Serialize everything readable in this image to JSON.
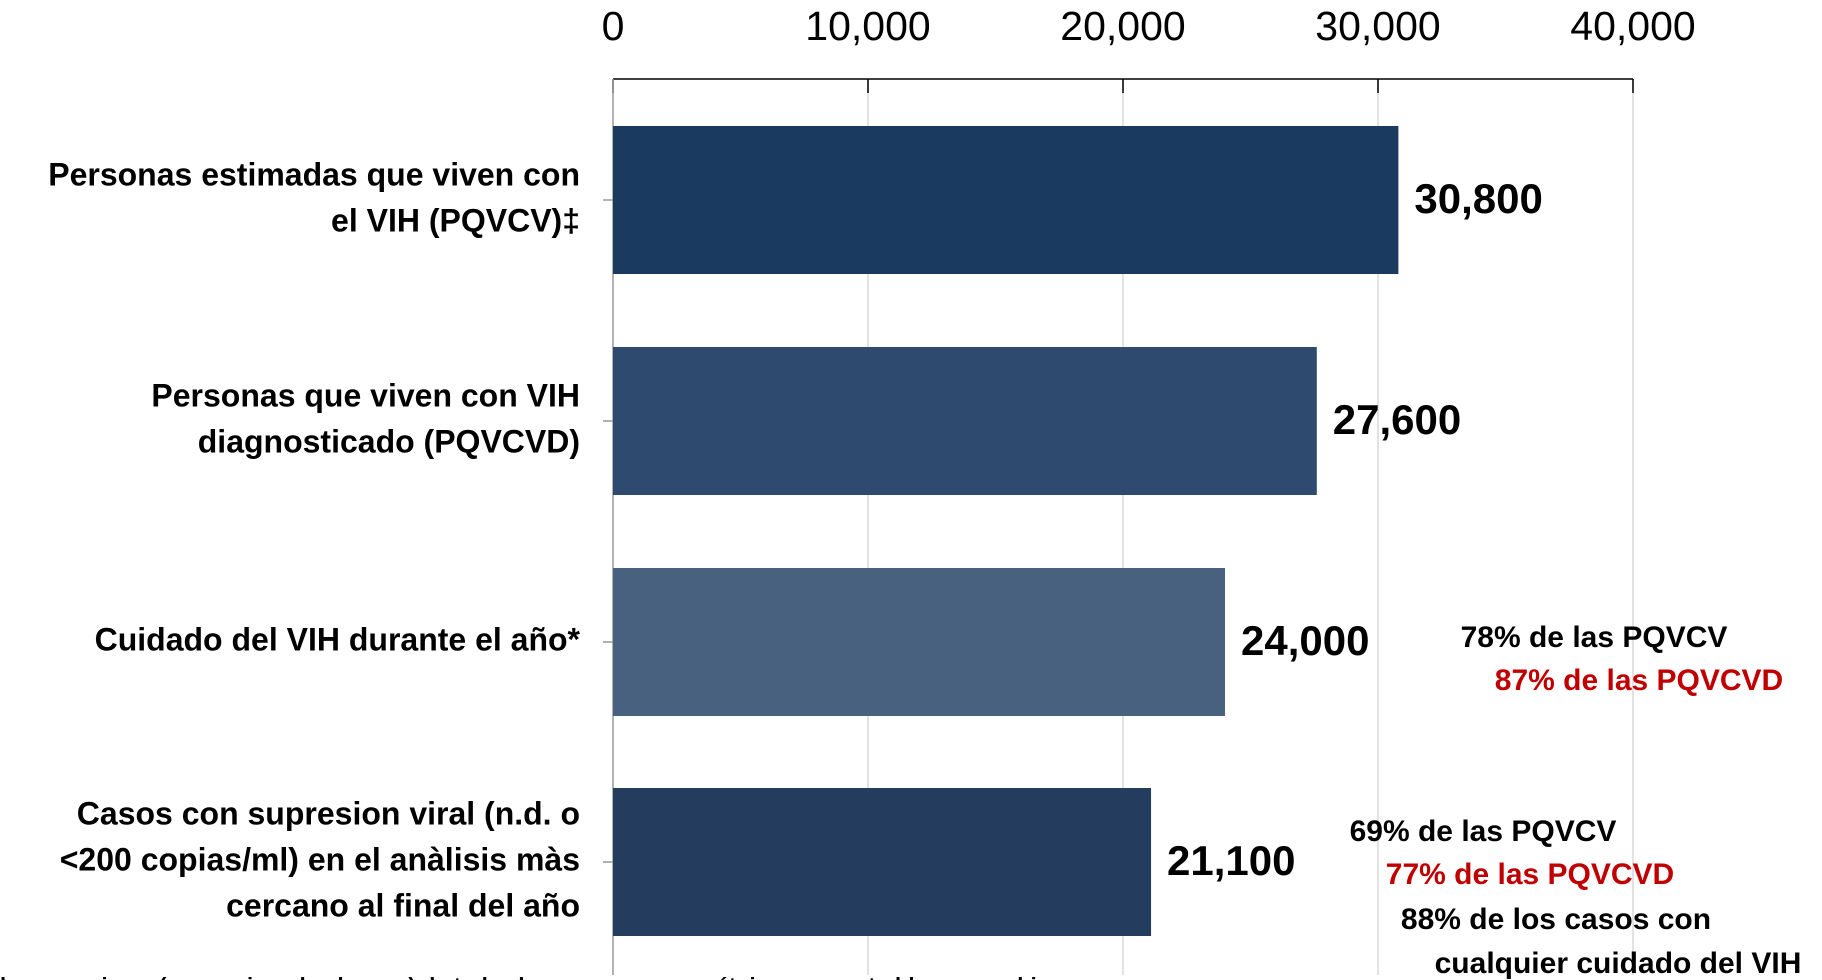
{
  "chart_data": {
    "type": "bar",
    "orientation": "horizontal",
    "categories": [
      [
        "Personas estimadas que viven con",
        "el VIH (PQVCV)‡"
      ],
      [
        "Personas que viven con VIH",
        "diagnosticado (PQVCVD)"
      ],
      [
        "Cuidado del VIH durante el año*"
      ],
      [
        "Casos con supresion viral (n.d. o",
        "<200 copias/ml) en el anàlisis màs",
        "cercano al final del año"
      ]
    ],
    "values": [
      30800,
      27600,
      24000,
      21100
    ],
    "value_labels": [
      "30,800",
      "27,600",
      "24,000",
      "21,100"
    ],
    "colors": [
      "#1b3a60",
      "#2e4a6e",
      "#48617f",
      "#243c5e"
    ],
    "xlim": [
      0,
      40000
    ],
    "xticks": [
      0,
      {
        "value": 10000,
        "label": "10,000"
      },
      {
        "value": 20000,
        "label": "20,000"
      },
      {
        "value": 30000,
        "label": "30,000"
      },
      {
        "value": 40000,
        "label": "40,000"
      }
    ],
    "grid": true,
    "annotations": [
      {
        "text": "78% de las PQVCV",
        "color": "#000000"
      },
      {
        "text": "87% de las PQVCVD",
        "color": "#c00000"
      },
      {
        "text": "69% de las PQVCV",
        "color": "#000000"
      },
      {
        "text": "77% de las PQVCVD",
        "color": "#c00000"
      },
      {
        "text": "88% de los casos con",
        "color": "#000000"
      },
      {
        "text": "cualquier cuidado del VIH",
        "color": "#000000"
      }
    ],
    "footnote": "luye a mujeres (sexo asignado al nacer) de todas las razas y grupos étnicos, excepto blancos no hispanos"
  }
}
